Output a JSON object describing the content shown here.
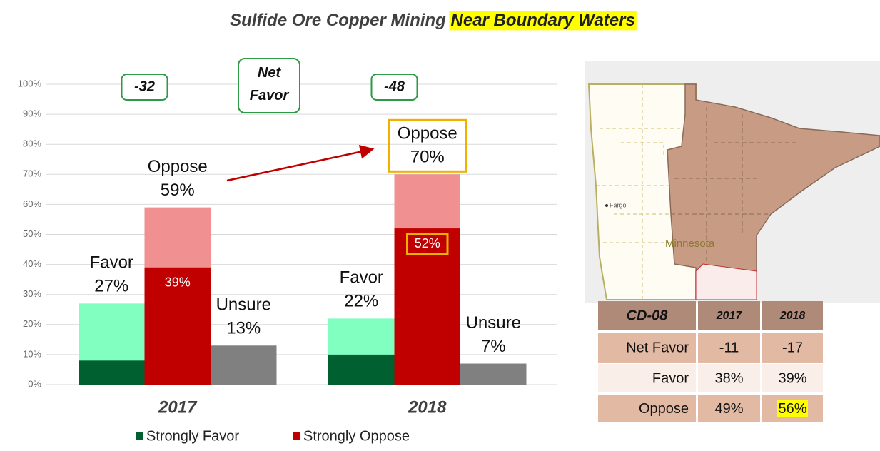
{
  "chart_data": {
    "type": "bar",
    "title": {
      "text": "Sulfide Ore Copper Mining",
      "highlight": "Near Boundary Waters"
    },
    "categories": [
      "2017",
      "2018"
    ],
    "ylim": [
      0,
      100
    ],
    "yticks": [
      {
        "value": 0,
        "label": "0%"
      },
      {
        "value": 10,
        "label": "10%"
      },
      {
        "value": 20,
        "label": "20%"
      },
      {
        "value": 30,
        "label": "30%"
      },
      {
        "value": 40,
        "label": "40%"
      },
      {
        "value": 50,
        "label": "50%"
      },
      {
        "value": 60,
        "label": "60%"
      },
      {
        "value": 70,
        "label": "70%"
      },
      {
        "value": 80,
        "label": "80%"
      },
      {
        "value": 90,
        "label": "90%"
      },
      {
        "value": 100,
        "label": "100%"
      }
    ],
    "bars": [
      {
        "name": "Favor",
        "color": "#80ffc0",
        "values": [
          27,
          22
        ],
        "value_labels": [
          "27%",
          "22%"
        ]
      },
      {
        "name": "Oppose",
        "color": "#f09090",
        "values": [
          59,
          70
        ],
        "value_labels": [
          "59%",
          "70%"
        ]
      },
      {
        "name": "Unsure",
        "color": "#808080",
        "values": [
          13,
          7
        ],
        "value_labels": [
          "13%",
          "7%"
        ]
      }
    ],
    "series": [
      {
        "name": "Strongly Favor",
        "color": "#006030",
        "values": [
          8,
          10
        ]
      },
      {
        "name": "Strongly Oppose",
        "color": "#c00000",
        "values": [
          39,
          52
        ],
        "value_labels": [
          "39%",
          "52%"
        ]
      }
    ],
    "net_favor": {
      "label": "Net Favor",
      "values": [
        -32,
        -48
      ]
    }
  },
  "map": {
    "labels": [
      "Fargo",
      "Minnesota"
    ]
  },
  "table": {
    "header": [
      "CD-08",
      "2017",
      "2018"
    ],
    "rows": [
      [
        "Net Favor",
        "-11",
        "-17"
      ],
      [
        "Favor",
        "38%",
        "39%"
      ],
      [
        "Oppose",
        "49%",
        "56%"
      ]
    ]
  }
}
